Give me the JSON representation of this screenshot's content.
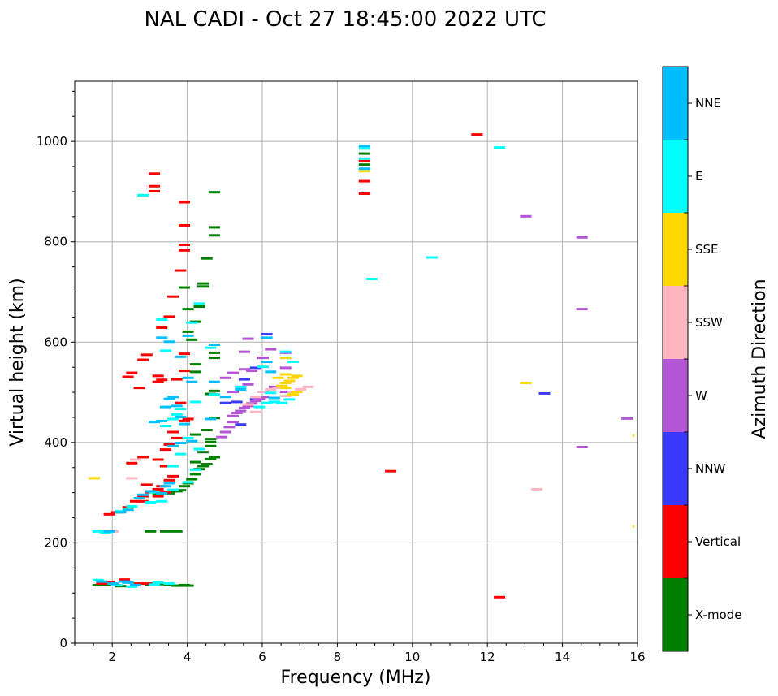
{
  "chart_data": {
    "type": "scatter",
    "title": "NAL CADI - Oct 27 18:45:00 2022 UTC",
    "xlabel": "Frequency (MHz)",
    "ylabel": "Virtual height (km)",
    "xlim": [
      1,
      16
    ],
    "ylim": [
      0,
      1120
    ],
    "xticks": [
      2,
      4,
      6,
      8,
      10,
      12,
      14,
      16
    ],
    "yticks": [
      0,
      200,
      400,
      600,
      800,
      1000
    ],
    "grid": true,
    "colorbar": {
      "title": "Azimuth Direction",
      "categories": [
        "X-mode",
        "Vertical",
        "NNW",
        "W",
        "SSW",
        "SSE",
        "E",
        "NNE"
      ],
      "colors": [
        "#008000",
        "#ff0000",
        "#3a3aff",
        "#b455d6",
        "#ffb6c1",
        "#ffd700",
        "#00ffff",
        "#00bfff"
      ]
    },
    "series": [
      {
        "name": "X-mode",
        "points": [
          [
            1.6,
            115
          ],
          [
            1.9,
            115
          ],
          [
            2.2,
            113
          ],
          [
            2.6,
            115
          ],
          [
            3.0,
            116
          ],
          [
            3.3,
            117
          ],
          [
            3.5,
            116
          ],
          [
            3.7,
            114
          ],
          [
            3.9,
            115
          ],
          [
            4.0,
            114
          ],
          [
            3.0,
            222
          ],
          [
            3.4,
            222
          ],
          [
            3.7,
            222
          ],
          [
            3.2,
            296
          ],
          [
            3.5,
            298
          ],
          [
            3.7,
            302
          ],
          [
            3.8,
            304
          ],
          [
            3.9,
            312
          ],
          [
            4.0,
            318
          ],
          [
            4.1,
            326
          ],
          [
            4.2,
            336
          ],
          [
            4.3,
            346
          ],
          [
            4.4,
            352
          ],
          [
            4.5,
            356
          ],
          [
            4.6,
            366
          ],
          [
            4.7,
            370
          ],
          [
            4.2,
            360
          ],
          [
            4.4,
            380
          ],
          [
            4.6,
            392
          ],
          [
            4.6,
            400
          ],
          [
            4.6,
            406
          ],
          [
            4.2,
            415
          ],
          [
            4.5,
            424
          ],
          [
            4.7,
            448
          ],
          [
            4.6,
            496
          ],
          [
            4.7,
            502
          ],
          [
            4.2,
            540
          ],
          [
            4.2,
            555
          ],
          [
            4.7,
            568
          ],
          [
            4.7,
            578
          ],
          [
            4.1,
            604
          ],
          [
            4.0,
            620
          ],
          [
            4.2,
            640
          ],
          [
            4.0,
            665
          ],
          [
            4.3,
            670
          ],
          [
            3.9,
            708
          ],
          [
            4.4,
            710
          ],
          [
            4.4,
            716
          ],
          [
            4.5,
            766
          ],
          [
            4.7,
            812
          ],
          [
            4.7,
            828
          ],
          [
            4.7,
            898
          ],
          [
            8.7,
            953
          ],
          [
            8.7,
            975
          ]
        ]
      },
      {
        "name": "Vertical",
        "points": [
          [
            1.7,
            118
          ],
          [
            1.9,
            120
          ],
          [
            2.3,
            126
          ],
          [
            2.7,
            118
          ],
          [
            3.0,
            118
          ],
          [
            1.9,
            256
          ],
          [
            2.1,
            260
          ],
          [
            2.4,
            270
          ],
          [
            2.6,
            282
          ],
          [
            2.8,
            292
          ],
          [
            3.0,
            300
          ],
          [
            3.2,
            306
          ],
          [
            3.3,
            312
          ],
          [
            3.5,
            324
          ],
          [
            3.6,
            332
          ],
          [
            2.8,
            282
          ],
          [
            3.2,
            292
          ],
          [
            3.4,
            300
          ],
          [
            2.8,
            370
          ],
          [
            2.5,
            358
          ],
          [
            3.2,
            365
          ],
          [
            2.9,
            315
          ],
          [
            3.4,
            352
          ],
          [
            3.4,
            385
          ],
          [
            3.5,
            395
          ],
          [
            3.7,
            408
          ],
          [
            3.6,
            420
          ],
          [
            3.9,
            442
          ],
          [
            4.0,
            446
          ],
          [
            3.8,
            478
          ],
          [
            3.7,
            525
          ],
          [
            3.9,
            542
          ],
          [
            3.9,
            576
          ],
          [
            2.8,
            564
          ],
          [
            2.9,
            574
          ],
          [
            2.5,
            538
          ],
          [
            2.4,
            530
          ],
          [
            2.7,
            508
          ],
          [
            3.2,
            520
          ],
          [
            3.3,
            524
          ],
          [
            3.2,
            532
          ],
          [
            3.3,
            628
          ],
          [
            3.5,
            650
          ],
          [
            3.6,
            690
          ],
          [
            3.8,
            742
          ],
          [
            3.9,
            782
          ],
          [
            3.9,
            793
          ],
          [
            3.9,
            832
          ],
          [
            3.9,
            878
          ],
          [
            3.1,
            900
          ],
          [
            3.1,
            910
          ],
          [
            3.1,
            935
          ],
          [
            8.7,
            895
          ],
          [
            8.7,
            920
          ],
          [
            8.7,
            960
          ],
          [
            9.4,
            342
          ],
          [
            11.7,
            1013
          ],
          [
            12.3,
            91
          ]
        ]
      },
      {
        "name": "NNW",
        "points": [
          [
            5.4,
            435
          ],
          [
            5.0,
            478
          ],
          [
            5.3,
            480
          ],
          [
            5.8,
            485
          ],
          [
            6.1,
            615
          ],
          [
            5.8,
            548
          ],
          [
            5.5,
            525
          ],
          [
            13.5,
            497
          ]
        ]
      },
      {
        "name": "W",
        "points": [
          [
            4.9,
            410
          ],
          [
            5.0,
            420
          ],
          [
            5.1,
            430
          ],
          [
            5.2,
            440
          ],
          [
            5.2,
            452
          ],
          [
            5.3,
            458
          ],
          [
            5.4,
            462
          ],
          [
            5.5,
            468
          ],
          [
            5.6,
            472
          ],
          [
            5.7,
            477
          ],
          [
            5.8,
            482
          ],
          [
            5.9,
            486
          ],
          [
            6.0,
            490
          ],
          [
            5.2,
            500
          ],
          [
            5.4,
            510
          ],
          [
            5.6,
            515
          ],
          [
            5.0,
            528
          ],
          [
            5.2,
            538
          ],
          [
            5.5,
            545
          ],
          [
            5.7,
            542
          ],
          [
            5.5,
            580
          ],
          [
            5.6,
            606
          ],
          [
            6.0,
            568
          ],
          [
            6.2,
            585
          ],
          [
            6.6,
            578
          ],
          [
            6.6,
            548
          ],
          [
            6.3,
            510
          ],
          [
            6.6,
            500
          ],
          [
            13.0,
            850
          ],
          [
            14.5,
            808
          ],
          [
            14.5,
            665
          ],
          [
            14.5,
            390
          ],
          [
            15.7,
            447
          ]
        ]
      },
      {
        "name": "SSW",
        "points": [
          [
            2.0,
            222
          ],
          [
            2.5,
            328
          ],
          [
            2.6,
            365
          ],
          [
            5.6,
            475
          ],
          [
            5.8,
            490
          ],
          [
            6.0,
            500
          ],
          [
            6.2,
            505
          ],
          [
            6.4,
            508
          ],
          [
            6.6,
            492
          ],
          [
            6.8,
            500
          ],
          [
            7.0,
            505
          ],
          [
            7.2,
            510
          ],
          [
            5.8,
            460
          ],
          [
            13.3,
            306
          ]
        ]
      },
      {
        "name": "SSE",
        "points": [
          [
            1.5,
            328
          ],
          [
            6.5,
            512
          ],
          [
            6.6,
            518
          ],
          [
            6.7,
            522
          ],
          [
            6.8,
            528
          ],
          [
            6.9,
            532
          ],
          [
            6.6,
            535
          ],
          [
            6.9,
            500
          ],
          [
            6.8,
            495
          ],
          [
            6.6,
            508
          ],
          [
            6.4,
            528
          ],
          [
            6.6,
            568
          ],
          [
            8.7,
            940
          ],
          [
            13.0,
            518
          ],
          [
            16.0,
            232
          ],
          [
            16.0,
            413
          ]
        ]
      },
      {
        "name": "E",
        "points": [
          [
            1.6,
            125
          ],
          [
            2.1,
            115
          ],
          [
            2.5,
            112
          ],
          [
            3.1,
            116
          ],
          [
            3.2,
            120
          ],
          [
            3.5,
            118
          ],
          [
            1.6,
            222
          ],
          [
            1.8,
            220
          ],
          [
            2.2,
            262
          ],
          [
            2.5,
            272
          ],
          [
            3.0,
            280
          ],
          [
            3.3,
            282
          ],
          [
            3.1,
            300
          ],
          [
            3.6,
            305
          ],
          [
            4.0,
            320
          ],
          [
            4.2,
            345
          ],
          [
            4.3,
            386
          ],
          [
            4.0,
            408
          ],
          [
            3.6,
            352
          ],
          [
            3.8,
            376
          ],
          [
            3.4,
            432
          ],
          [
            3.6,
            446
          ],
          [
            5.9,
            470
          ],
          [
            6.1,
            478
          ],
          [
            6.3,
            480
          ],
          [
            6.5,
            478
          ],
          [
            6.7,
            485
          ],
          [
            6.2,
            498
          ],
          [
            6.8,
            560
          ],
          [
            6.6,
            580
          ],
          [
            6.0,
            550
          ],
          [
            5.4,
            510
          ],
          [
            3.7,
            455
          ],
          [
            3.8,
            466
          ],
          [
            4.2,
            480
          ],
          [
            4.7,
            495
          ],
          [
            4.6,
            588
          ],
          [
            4.1,
            638
          ],
          [
            4.3,
            676
          ],
          [
            3.4,
            582
          ],
          [
            3.3,
            644
          ],
          [
            2.8,
            892
          ],
          [
            8.7,
            965
          ],
          [
            8.7,
            985
          ],
          [
            8.9,
            725
          ],
          [
            10.5,
            768
          ],
          [
            12.3,
            987
          ]
        ]
      },
      {
        "name": "NNE",
        "points": [
          [
            1.7,
            122
          ],
          [
            2.0,
            118
          ],
          [
            2.3,
            122
          ],
          [
            2.6,
            115
          ],
          [
            2.4,
            120
          ],
          [
            1.9,
            222
          ],
          [
            2.2,
            260
          ],
          [
            2.4,
            265
          ],
          [
            2.7,
            288
          ],
          [
            2.8,
            295
          ],
          [
            3.0,
            302
          ],
          [
            3.3,
            298
          ],
          [
            3.4,
            312
          ],
          [
            3.5,
            318
          ],
          [
            3.6,
            392
          ],
          [
            3.8,
            398
          ],
          [
            4.1,
            402
          ],
          [
            3.4,
            470
          ],
          [
            3.5,
            486
          ],
          [
            3.6,
            490
          ],
          [
            3.7,
            472
          ],
          [
            3.8,
            450
          ],
          [
            3.9,
            436
          ],
          [
            3.1,
            440
          ],
          [
            3.3,
            442
          ],
          [
            4.0,
            528
          ],
          [
            4.1,
            520
          ],
          [
            4.0,
            612
          ],
          [
            3.5,
            600
          ],
          [
            3.3,
            608
          ],
          [
            3.8,
            570
          ],
          [
            4.6,
            446
          ],
          [
            4.7,
            594
          ],
          [
            6.1,
            560
          ],
          [
            6.2,
            540
          ],
          [
            6.1,
            608
          ],
          [
            6.3,
            488
          ],
          [
            5.4,
            505
          ],
          [
            5.0,
            490
          ],
          [
            4.7,
            520
          ],
          [
            8.7,
            945
          ],
          [
            8.7,
            990
          ]
        ]
      }
    ]
  }
}
